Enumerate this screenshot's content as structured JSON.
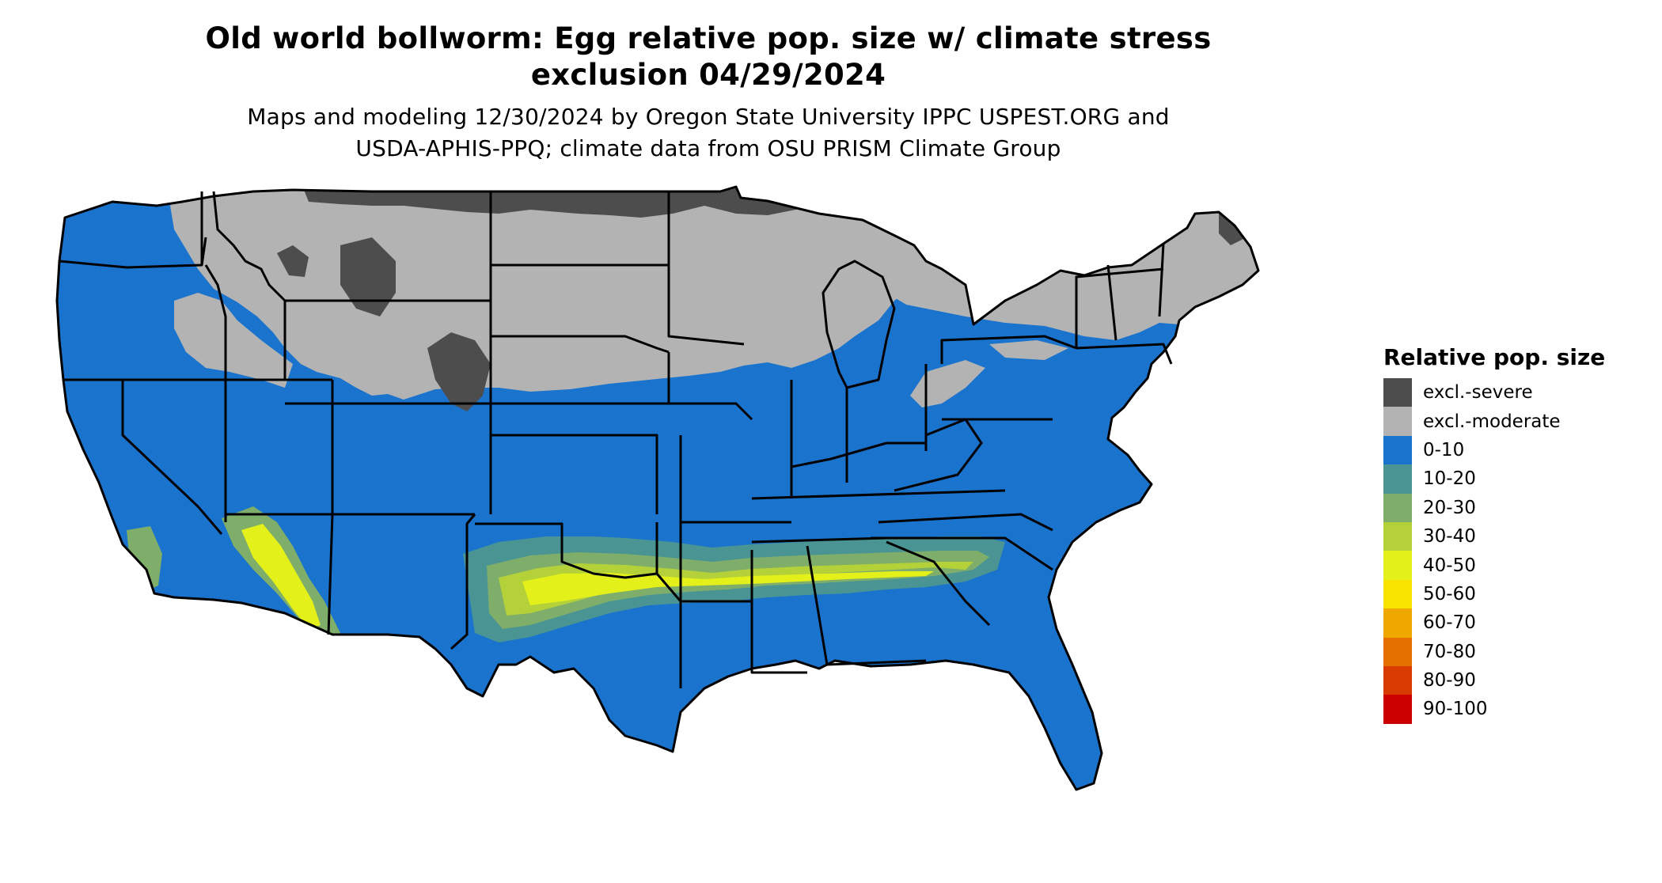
{
  "title": {
    "line1": "Old world bollworm: Egg relative pop. size w/ climate stress",
    "line2": "exclusion 04/29/2024"
  },
  "subtitle": {
    "line1": "Maps and modeling 12/30/2024 by Oregon State University IPPC USPEST.ORG and",
    "line2": "USDA-APHIS-PPQ; climate data from OSU PRISM Climate Group"
  },
  "legend": {
    "title": "Relative pop. size",
    "items": [
      {
        "label": "excl.-severe",
        "color": "#4d4d4d"
      },
      {
        "label": "excl.-moderate",
        "color": "#b3b3b3"
      },
      {
        "label": "0-10",
        "color": "#1a73cc"
      },
      {
        "label": "10-20",
        "color": "#4a9494"
      },
      {
        "label": "20-30",
        "color": "#7fae6a"
      },
      {
        "label": "30-40",
        "color": "#b5d13a"
      },
      {
        "label": "40-50",
        "color": "#e3f01a"
      },
      {
        "label": "50-60",
        "color": "#f7e200"
      },
      {
        "label": "60-70",
        "color": "#eea800"
      },
      {
        "label": "70-80",
        "color": "#e57000"
      },
      {
        "label": "80-90",
        "color": "#d93a00"
      },
      {
        "label": "90-100",
        "color": "#cc0000"
      }
    ]
  },
  "map": {
    "region": "Conterminous United States",
    "colors": {
      "severe": "#4d4d4d",
      "moderate": "#b3b3b3",
      "low": "#1a73cc",
      "band_10_20": "#4a9494",
      "band_20_30": "#7fae6a",
      "band_30_40": "#b5d13a",
      "band_40_50": "#e3f01a",
      "band_50_60": "#f7e200",
      "borders": "#000000"
    }
  }
}
